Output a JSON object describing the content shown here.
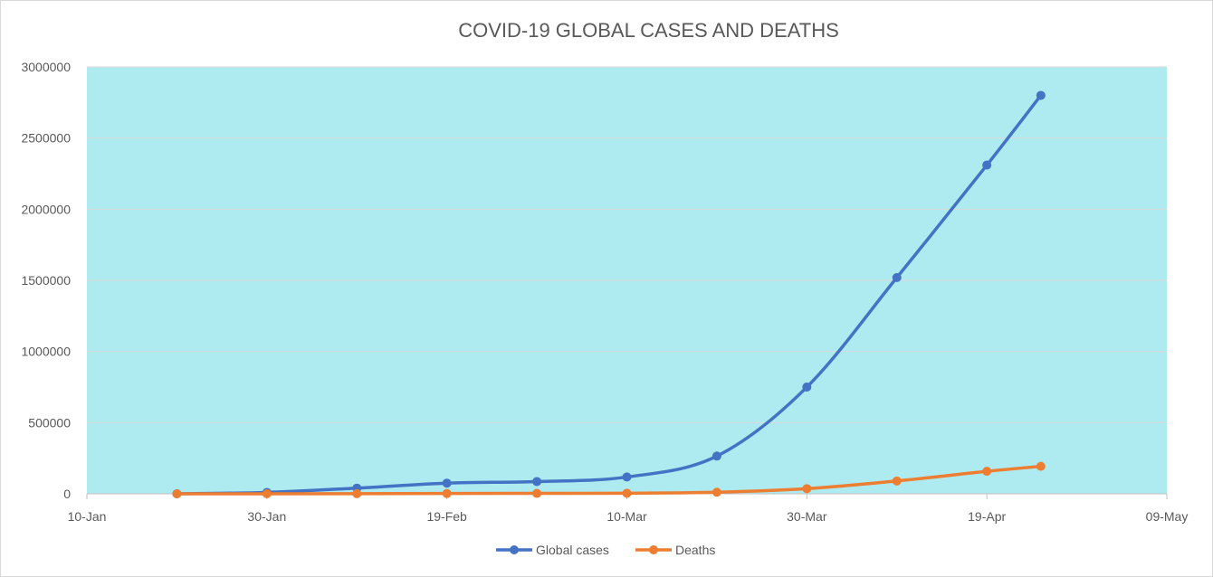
{
  "chart_data": {
    "type": "line",
    "title": "COVID-19 GLOBAL CASES AND DEATHS",
    "xlabel": "",
    "ylabel": "",
    "x_tick_labels": [
      "10-Jan",
      "30-Jan",
      "19-Feb",
      "10-Mar",
      "30-Mar",
      "19-Apr",
      "09-May"
    ],
    "x_range": [
      "2020-01-10",
      "2020-05-09"
    ],
    "y_tick_labels": [
      "0",
      "500000",
      "1000000",
      "1500000",
      "2000000",
      "2500000",
      "3000000"
    ],
    "ylim": [
      0,
      3000000
    ],
    "grid": "horizontal",
    "legend_position": "bottom",
    "plot_background": "#aeebf0",
    "smoothed": true,
    "x": [
      "2020-01-20",
      "2020-01-30",
      "2020-02-09",
      "2020-02-19",
      "2020-02-29",
      "2020-03-10",
      "2020-03-20",
      "2020-03-30",
      "2020-04-09",
      "2020-04-19",
      "2020-04-25"
    ],
    "series": [
      {
        "name": "Global cases",
        "color": "#4472c4",
        "values": [
          300,
          9800,
          40000,
          75000,
          86000,
          118000,
          265000,
          750000,
          1520000,
          2310000,
          2800000
        ]
      },
      {
        "name": "Deaths",
        "color": "#ed7d31",
        "values": [
          6,
          210,
          900,
          2100,
          2900,
          4300,
          11000,
          36000,
          90000,
          158000,
          193000
        ]
      }
    ]
  }
}
